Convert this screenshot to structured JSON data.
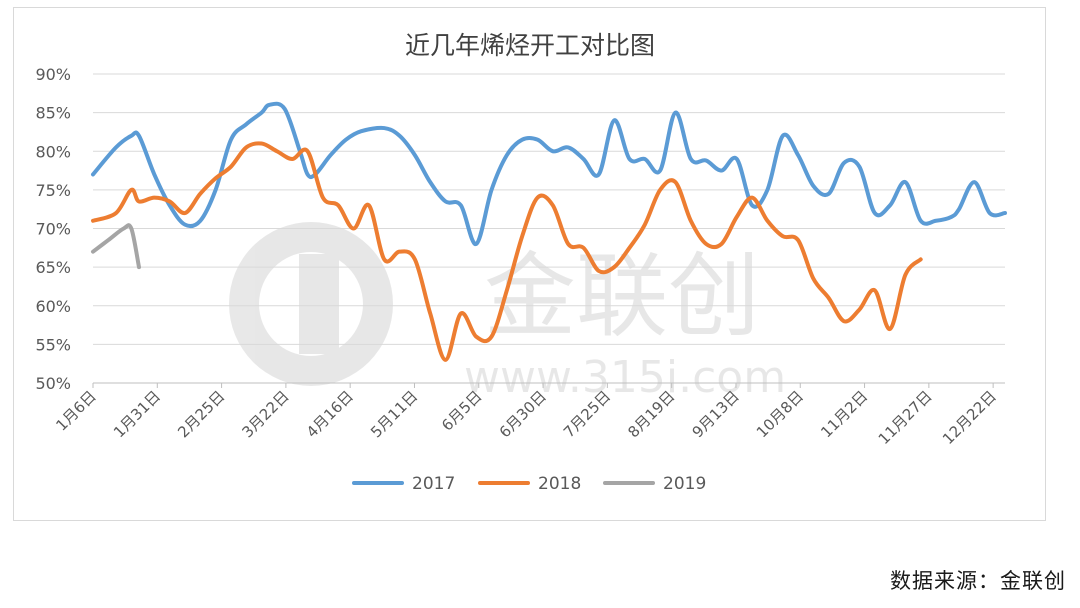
{
  "chart_data": {
    "type": "line",
    "title": "近几年烯烃开工对比图",
    "xlabel": "",
    "ylabel": "",
    "ylim": [
      50,
      90
    ],
    "yticks": [
      "90%",
      "85%",
      "80%",
      "75%",
      "70%",
      "65%",
      "60%",
      "55%",
      "50%"
    ],
    "x_tick_labels": [
      "1月6日",
      "1月31日",
      "2月25日",
      "3月22日",
      "4月16日",
      "5月11日",
      "6月5日",
      "6月30日",
      "7月25日",
      "8月19日",
      "9月13日",
      "10月8日",
      "11月2日",
      "11月27日",
      "12月22日"
    ],
    "grid": true,
    "legend_position": "bottom",
    "series": [
      {
        "name": "2017",
        "color": "#5b9bd5",
        "points": [
          [
            0,
            77
          ],
          [
            3,
            80.5
          ],
          [
            5,
            82
          ],
          [
            6,
            82
          ],
          [
            8,
            77
          ],
          [
            10,
            73
          ],
          [
            12,
            70.5
          ],
          [
            14,
            71
          ],
          [
            16,
            75
          ],
          [
            18,
            81.5
          ],
          [
            20,
            83.5
          ],
          [
            22,
            85
          ],
          [
            23,
            86
          ],
          [
            25,
            85.5
          ],
          [
            27,
            80
          ],
          [
            28,
            77
          ],
          [
            29,
            77
          ],
          [
            31,
            79.5
          ],
          [
            33,
            81.5
          ],
          [
            35,
            82.6
          ],
          [
            38,
            83
          ],
          [
            40,
            82
          ],
          [
            42,
            79.5
          ],
          [
            44,
            76
          ],
          [
            46,
            73.5
          ],
          [
            48,
            73
          ],
          [
            50,
            68
          ],
          [
            52,
            75
          ],
          [
            54,
            79.5
          ],
          [
            56,
            81.5
          ],
          [
            58,
            81.5
          ],
          [
            60,
            80
          ],
          [
            62,
            80.5
          ],
          [
            64,
            79
          ],
          [
            66,
            77
          ],
          [
            68,
            84
          ],
          [
            70,
            79
          ],
          [
            72,
            79
          ],
          [
            74,
            77.5
          ],
          [
            76,
            85
          ],
          [
            78,
            79
          ],
          [
            80,
            78.8
          ],
          [
            82,
            77.5
          ],
          [
            84,
            79
          ],
          [
            86,
            73
          ],
          [
            88,
            75
          ],
          [
            90,
            82
          ],
          [
            92,
            79.5
          ],
          [
            94,
            75.5
          ],
          [
            96,
            74.5
          ],
          [
            98,
            78.5
          ],
          [
            100,
            78
          ],
          [
            102,
            72
          ],
          [
            104,
            73
          ],
          [
            106,
            76
          ],
          [
            108,
            71
          ],
          [
            110,
            71
          ],
          [
            112,
            71.5
          ],
          [
            113,
            72.5
          ],
          [
            115,
            76
          ],
          [
            117,
            72
          ],
          [
            119,
            72
          ]
        ]
      },
      {
        "name": "2018",
        "color": "#ed7d31",
        "points": [
          [
            0,
            71
          ],
          [
            3,
            72
          ],
          [
            5,
            75
          ],
          [
            6,
            73.5
          ],
          [
            8,
            74
          ],
          [
            10,
            73.5
          ],
          [
            12,
            72
          ],
          [
            14,
            74.5
          ],
          [
            16,
            76.5
          ],
          [
            18,
            78
          ],
          [
            20,
            80.5
          ],
          [
            22,
            81
          ],
          [
            24,
            80
          ],
          [
            26,
            79
          ],
          [
            28,
            80
          ],
          [
            30,
            74
          ],
          [
            32,
            73
          ],
          [
            34,
            70
          ],
          [
            36,
            73
          ],
          [
            38,
            66
          ],
          [
            40,
            67
          ],
          [
            42,
            66
          ],
          [
            44,
            59
          ],
          [
            46,
            53
          ],
          [
            48,
            59
          ],
          [
            50,
            56
          ],
          [
            52,
            56
          ],
          [
            54,
            62
          ],
          [
            56,
            69
          ],
          [
            58,
            74
          ],
          [
            60,
            73
          ],
          [
            62,
            68
          ],
          [
            64,
            67.5
          ],
          [
            66,
            64.5
          ],
          [
            68,
            65
          ],
          [
            70,
            67.5
          ],
          [
            72,
            70.5
          ],
          [
            74,
            75
          ],
          [
            76,
            76
          ],
          [
            78,
            71
          ],
          [
            80,
            68
          ],
          [
            82,
            68
          ],
          [
            84,
            71.5
          ],
          [
            86,
            74
          ],
          [
            88,
            71
          ],
          [
            90,
            69
          ],
          [
            92,
            68.5
          ],
          [
            94,
            63.5
          ],
          [
            96,
            61
          ],
          [
            98,
            58
          ],
          [
            100,
            59.5
          ],
          [
            102,
            62
          ],
          [
            104,
            57
          ],
          [
            106,
            64
          ],
          [
            108,
            66
          ]
        ]
      },
      {
        "name": "2019",
        "color": "#a5a5a5",
        "points": [
          [
            0,
            67
          ],
          [
            2,
            68.5
          ],
          [
            4,
            70
          ],
          [
            5,
            70
          ],
          [
            6,
            65
          ]
        ]
      }
    ],
    "x_domain": [
      0,
      119
    ]
  },
  "watermark": {
    "brand_text": "金联创",
    "url_text": "www.315i.com"
  },
  "source_note": "数据来源：金联创"
}
